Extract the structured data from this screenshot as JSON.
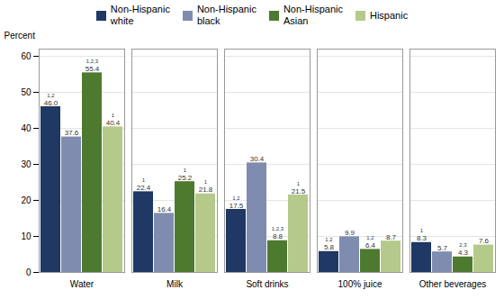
{
  "chart_data": {
    "type": "bar",
    "categories": [
      "Water",
      "Milk",
      "Soft drinks",
      "100% juice",
      "Other beverages"
    ],
    "series": [
      {
        "name": "Non-Hispanic\nwhite",
        "color": "#1f3864",
        "values": [
          46.0,
          22.4,
          17.5,
          5.8,
          8.3
        ],
        "value_labels": [
          "46.0",
          "22.4",
          "17.5",
          "5.8",
          "8.3"
        ],
        "superscripts": [
          "1,2",
          "1",
          "1,2",
          "1,2",
          "1"
        ]
      },
      {
        "name": "Non-Hispanic\nblack",
        "color": "#7f8cb0",
        "values": [
          37.6,
          16.4,
          30.4,
          9.9,
          5.7
        ],
        "value_labels": [
          "37.6",
          "16.4",
          "30.4",
          "9.9",
          "5.7"
        ],
        "superscripts": [
          null,
          null,
          null,
          null,
          null
        ]
      },
      {
        "name": "Non-Hispanic\nAsian",
        "color": "#4e7a30",
        "values": [
          55.4,
          25.2,
          8.8,
          6.4,
          4.3
        ],
        "value_labels": [
          "55.4",
          "25.2",
          "8.8",
          "6.4",
          "4.3"
        ],
        "superscripts": [
          "1,2,3",
          "1",
          "1,2,3",
          "1,2",
          "2,3"
        ]
      },
      {
        "name": "Hispanic",
        "color": "#b5c98a",
        "values": [
          40.4,
          21.8,
          21.5,
          8.7,
          7.6
        ],
        "value_labels": [
          "40.4",
          "21.8",
          "21.5",
          "8.7",
          "7.6"
        ],
        "superscripts": [
          "1",
          "1",
          "1",
          null,
          null
        ]
      }
    ],
    "ylabel": "Percent",
    "ylim": [
      0,
      62
    ],
    "yticks": [
      0,
      10,
      20,
      30,
      40,
      50,
      60
    ],
    "grid": true,
    "legend": "top",
    "data_labels": true
  }
}
